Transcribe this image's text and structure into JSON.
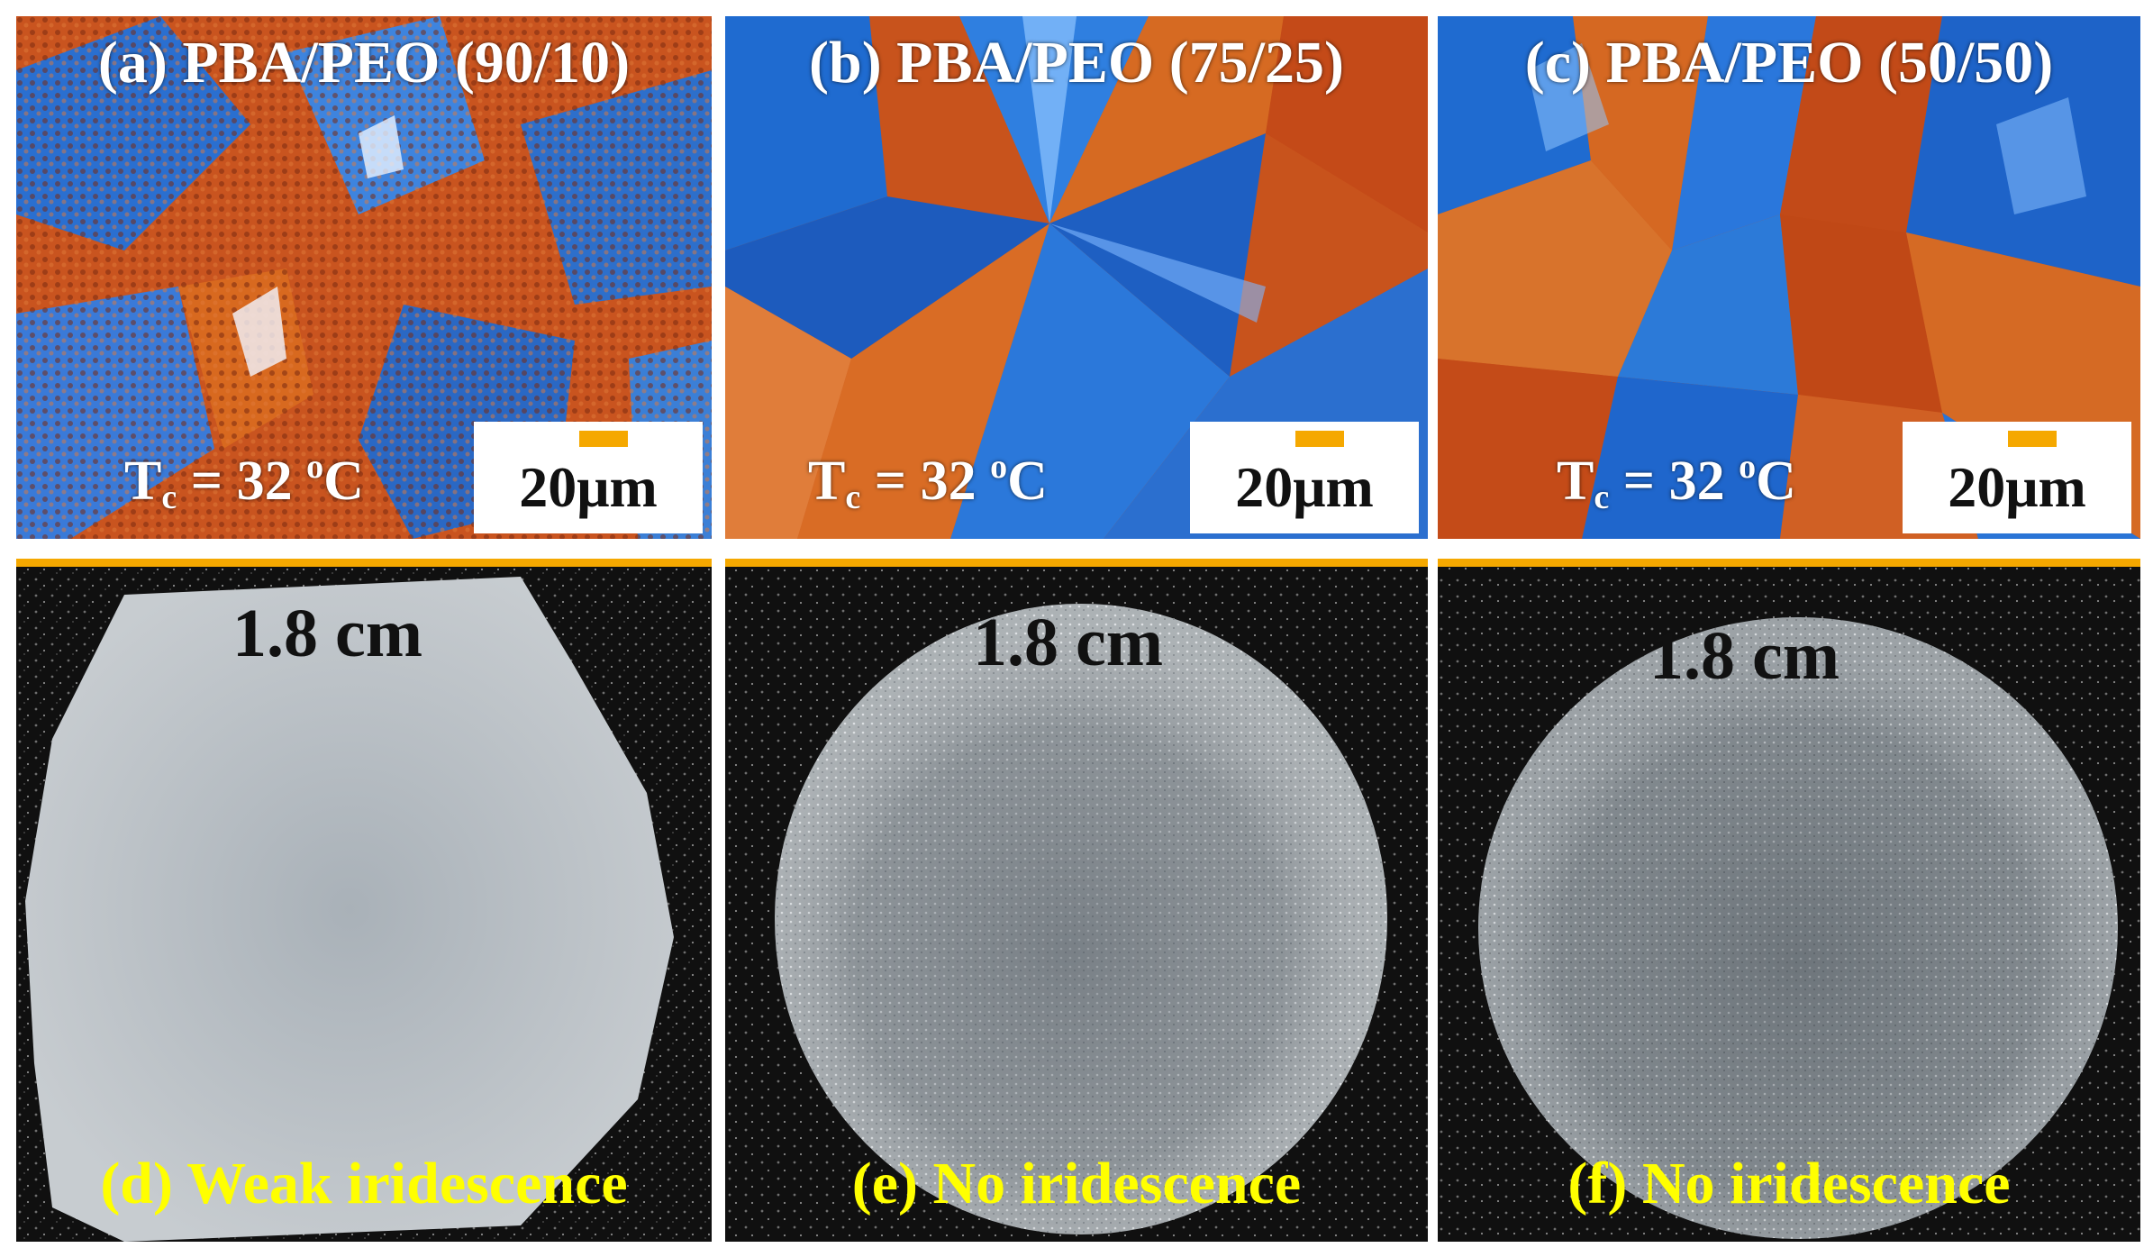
{
  "colors": {
    "pom_orange": "#c8531c",
    "pom_blue": "#1e6fd0",
    "scale_bar": "#f5a800",
    "caption_yellow": "#ffff00",
    "photo_background": "#101010"
  },
  "top_row": [
    {
      "title": "(a) PBA/PEO (90/10)",
      "tc_prefix": "T",
      "tc_sub": "c",
      "tc_mid": " = 32 ",
      "tc_sup": "o",
      "tc_suffix": "C",
      "scale_label": "20μm"
    },
    {
      "title": "(b) PBA/PEO (75/25)",
      "tc_prefix": "T",
      "tc_sub": "c",
      "tc_mid": " = 32 ",
      "tc_sup": "o",
      "tc_suffix": "C",
      "scale_label": "20μm"
    },
    {
      "title": "(c) PBA/PEO (50/50)",
      "tc_prefix": "T",
      "tc_sub": "c",
      "tc_mid": " = 32 ",
      "tc_sup": "o",
      "tc_suffix": "C",
      "scale_label": "20μm"
    }
  ],
  "bottom_row": [
    {
      "size_label": "1.8 cm",
      "caption": "(d) Weak iridescence"
    },
    {
      "size_label": "1.8 cm",
      "caption": "(e) No iridescence"
    },
    {
      "size_label": "1.8 cm",
      "caption": "(f) No iridescence"
    }
  ]
}
